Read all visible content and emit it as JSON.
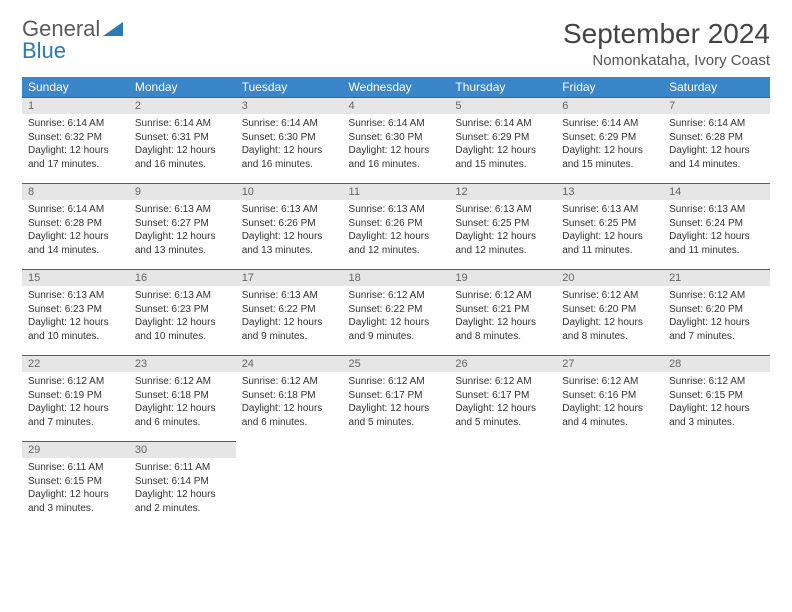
{
  "logo": {
    "text_gray": "General",
    "text_blue": "Blue"
  },
  "title": "September 2024",
  "location": "Nomonkataha, Ivory Coast",
  "colors": {
    "header_bg": "#3a86c8",
    "header_text": "#ffffff",
    "daynum_bg": "#e6e6e6",
    "row_border": "#2a6aa0",
    "logo_gray": "#5a5a5a",
    "logo_blue": "#2a7ab8"
  },
  "weekdays": [
    "Sunday",
    "Monday",
    "Tuesday",
    "Wednesday",
    "Thursday",
    "Friday",
    "Saturday"
  ],
  "weeks": [
    [
      {
        "n": "1",
        "sr": "Sunrise: 6:14 AM",
        "ss": "Sunset: 6:32 PM",
        "d1": "Daylight: 12 hours",
        "d2": "and 17 minutes."
      },
      {
        "n": "2",
        "sr": "Sunrise: 6:14 AM",
        "ss": "Sunset: 6:31 PM",
        "d1": "Daylight: 12 hours",
        "d2": "and 16 minutes."
      },
      {
        "n": "3",
        "sr": "Sunrise: 6:14 AM",
        "ss": "Sunset: 6:30 PM",
        "d1": "Daylight: 12 hours",
        "d2": "and 16 minutes."
      },
      {
        "n": "4",
        "sr": "Sunrise: 6:14 AM",
        "ss": "Sunset: 6:30 PM",
        "d1": "Daylight: 12 hours",
        "d2": "and 16 minutes."
      },
      {
        "n": "5",
        "sr": "Sunrise: 6:14 AM",
        "ss": "Sunset: 6:29 PM",
        "d1": "Daylight: 12 hours",
        "d2": "and 15 minutes."
      },
      {
        "n": "6",
        "sr": "Sunrise: 6:14 AM",
        "ss": "Sunset: 6:29 PM",
        "d1": "Daylight: 12 hours",
        "d2": "and 15 minutes."
      },
      {
        "n": "7",
        "sr": "Sunrise: 6:14 AM",
        "ss": "Sunset: 6:28 PM",
        "d1": "Daylight: 12 hours",
        "d2": "and 14 minutes."
      }
    ],
    [
      {
        "n": "8",
        "sr": "Sunrise: 6:14 AM",
        "ss": "Sunset: 6:28 PM",
        "d1": "Daylight: 12 hours",
        "d2": "and 14 minutes."
      },
      {
        "n": "9",
        "sr": "Sunrise: 6:13 AM",
        "ss": "Sunset: 6:27 PM",
        "d1": "Daylight: 12 hours",
        "d2": "and 13 minutes."
      },
      {
        "n": "10",
        "sr": "Sunrise: 6:13 AM",
        "ss": "Sunset: 6:26 PM",
        "d1": "Daylight: 12 hours",
        "d2": "and 13 minutes."
      },
      {
        "n": "11",
        "sr": "Sunrise: 6:13 AM",
        "ss": "Sunset: 6:26 PM",
        "d1": "Daylight: 12 hours",
        "d2": "and 12 minutes."
      },
      {
        "n": "12",
        "sr": "Sunrise: 6:13 AM",
        "ss": "Sunset: 6:25 PM",
        "d1": "Daylight: 12 hours",
        "d2": "and 12 minutes."
      },
      {
        "n": "13",
        "sr": "Sunrise: 6:13 AM",
        "ss": "Sunset: 6:25 PM",
        "d1": "Daylight: 12 hours",
        "d2": "and 11 minutes."
      },
      {
        "n": "14",
        "sr": "Sunrise: 6:13 AM",
        "ss": "Sunset: 6:24 PM",
        "d1": "Daylight: 12 hours",
        "d2": "and 11 minutes."
      }
    ],
    [
      {
        "n": "15",
        "sr": "Sunrise: 6:13 AM",
        "ss": "Sunset: 6:23 PM",
        "d1": "Daylight: 12 hours",
        "d2": "and 10 minutes."
      },
      {
        "n": "16",
        "sr": "Sunrise: 6:13 AM",
        "ss": "Sunset: 6:23 PM",
        "d1": "Daylight: 12 hours",
        "d2": "and 10 minutes."
      },
      {
        "n": "17",
        "sr": "Sunrise: 6:13 AM",
        "ss": "Sunset: 6:22 PM",
        "d1": "Daylight: 12 hours",
        "d2": "and 9 minutes."
      },
      {
        "n": "18",
        "sr": "Sunrise: 6:12 AM",
        "ss": "Sunset: 6:22 PM",
        "d1": "Daylight: 12 hours",
        "d2": "and 9 minutes."
      },
      {
        "n": "19",
        "sr": "Sunrise: 6:12 AM",
        "ss": "Sunset: 6:21 PM",
        "d1": "Daylight: 12 hours",
        "d2": "and 8 minutes."
      },
      {
        "n": "20",
        "sr": "Sunrise: 6:12 AM",
        "ss": "Sunset: 6:20 PM",
        "d1": "Daylight: 12 hours",
        "d2": "and 8 minutes."
      },
      {
        "n": "21",
        "sr": "Sunrise: 6:12 AM",
        "ss": "Sunset: 6:20 PM",
        "d1": "Daylight: 12 hours",
        "d2": "and 7 minutes."
      }
    ],
    [
      {
        "n": "22",
        "sr": "Sunrise: 6:12 AM",
        "ss": "Sunset: 6:19 PM",
        "d1": "Daylight: 12 hours",
        "d2": "and 7 minutes."
      },
      {
        "n": "23",
        "sr": "Sunrise: 6:12 AM",
        "ss": "Sunset: 6:18 PM",
        "d1": "Daylight: 12 hours",
        "d2": "and 6 minutes."
      },
      {
        "n": "24",
        "sr": "Sunrise: 6:12 AM",
        "ss": "Sunset: 6:18 PM",
        "d1": "Daylight: 12 hours",
        "d2": "and 6 minutes."
      },
      {
        "n": "25",
        "sr": "Sunrise: 6:12 AM",
        "ss": "Sunset: 6:17 PM",
        "d1": "Daylight: 12 hours",
        "d2": "and 5 minutes."
      },
      {
        "n": "26",
        "sr": "Sunrise: 6:12 AM",
        "ss": "Sunset: 6:17 PM",
        "d1": "Daylight: 12 hours",
        "d2": "and 5 minutes."
      },
      {
        "n": "27",
        "sr": "Sunrise: 6:12 AM",
        "ss": "Sunset: 6:16 PM",
        "d1": "Daylight: 12 hours",
        "d2": "and 4 minutes."
      },
      {
        "n": "28",
        "sr": "Sunrise: 6:12 AM",
        "ss": "Sunset: 6:15 PM",
        "d1": "Daylight: 12 hours",
        "d2": "and 3 minutes."
      }
    ],
    [
      {
        "n": "29",
        "sr": "Sunrise: 6:11 AM",
        "ss": "Sunset: 6:15 PM",
        "d1": "Daylight: 12 hours",
        "d2": "and 3 minutes."
      },
      {
        "n": "30",
        "sr": "Sunrise: 6:11 AM",
        "ss": "Sunset: 6:14 PM",
        "d1": "Daylight: 12 hours",
        "d2": "and 2 minutes."
      },
      null,
      null,
      null,
      null,
      null
    ]
  ]
}
